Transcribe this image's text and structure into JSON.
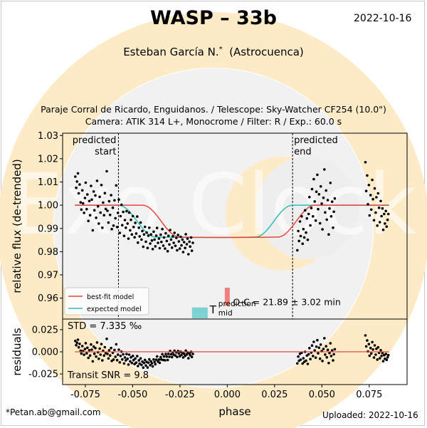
{
  "header": {
    "title": "WASP – 33b",
    "date": "2022-10-16",
    "author": "Esteban García N.",
    "author_mark": "*",
    "affiliation": "(Astrocuenca)",
    "info_line1": "Paraje Corral de Ricardo, Enguidanos. / Telescope: Sky-Watcher CF254 (10.0\")",
    "info_line2": "Camera: ATIK 314 L+, Monocrome / Filter: R / Exp.: 60.0 s"
  },
  "footer": {
    "email": "*Petan.ab@gmail.com",
    "uploaded": "Uploaded: 2022-10-16"
  },
  "watermark": {
    "text": "Exo Clock",
    "colors": [
      "#fdebc7",
      "#eeeeee"
    ]
  },
  "chart_data": {
    "type": "scatter",
    "xlabel": "phase",
    "ylabel_top": "relative flux (de-trended)",
    "ylabel_bottom": "residuals",
    "xlim": [
      -0.087,
      0.095
    ],
    "xticks": [
      "-0.075",
      "-0.050",
      "-0.025",
      "0.000",
      "0.025",
      "0.050",
      "0.075"
    ],
    "xtick_values": [
      -0.075,
      -0.05,
      -0.025,
      0.0,
      0.025,
      0.05,
      0.075
    ],
    "top": {
      "ylim": [
        0.951,
        1.031
      ],
      "yticks": [
        "0.96",
        "0.97",
        "0.98",
        "0.99",
        "1.00",
        "1.01",
        "1.02",
        "1.03"
      ],
      "ytick_values": [
        0.96,
        0.97,
        0.98,
        0.99,
        1.0,
        1.01,
        1.02,
        1.03
      ],
      "predicted_start": {
        "x": -0.0575,
        "label_line1": "predicted",
        "label_line2": "start"
      },
      "predicted_end": {
        "x": 0.0345,
        "label_line1": "predicted",
        "label_line2": "end"
      },
      "models": {
        "best_fit": {
          "label": "best-fit model",
          "color": "#e8453c",
          "x_start": -0.0448,
          "x_end": 0.0463,
          "ingress": 0.0195,
          "depth": 0.0133
        },
        "expected": {
          "label": "expected model",
          "color": "#2bbfb6",
          "x_start": -0.0575,
          "x_end": 0.0345,
          "ingress": 0.0195,
          "depth": 0.0133
        }
      },
      "oc_text": "O-C = 21.89 ± 3.02 min",
      "oc_color": "#f08080",
      "oc_bar": {
        "x": 0.0,
        "y_range": [
          0.9568,
          0.9645
        ]
      },
      "tmid_bar": {
        "x": -0.0145,
        "y_range": [
          0.9513,
          0.956
        ]
      },
      "tmid_color": "#7fd2d2",
      "tmid_label": "T",
      "tmid_sup": "prediction",
      "tmid_sub": "mid"
    },
    "bottom": {
      "ylim": [
        -0.037,
        0.037
      ],
      "yticks": [
        "-0.025",
        "0.000",
        "0.025"
      ],
      "ytick_values": [
        -0.025,
        0.0,
        0.025
      ],
      "std_text": "STD = 7.335 ‰",
      "snr_text": "Transit SNR = 9.8"
    },
    "points": [
      [
        -0.0803,
        1.0123
      ],
      [
        -0.0798,
        1.0075
      ],
      [
        -0.0794,
        1.0102
      ],
      [
        -0.0789,
        1.0137
      ],
      [
        -0.0785,
        1.0051
      ],
      [
        -0.078,
        1.0089
      ],
      [
        -0.0775,
        1.0012
      ],
      [
        -0.0771,
        0.9981
      ],
      [
        -0.0766,
        1.0064
      ],
      [
        -0.0762,
        1.0008
      ],
      [
        -0.0757,
        0.9967
      ],
      [
        -0.0752,
        1.0031
      ],
      [
        -0.0748,
        1.0097
      ],
      [
        -0.0743,
        0.9983
      ],
      [
        -0.0739,
        1.0046
      ],
      [
        -0.0734,
        0.9932
      ],
      [
        -0.0729,
        1.0018
      ],
      [
        -0.0725,
        0.9957
      ],
      [
        -0.072,
        1.0083
      ],
      [
        -0.0716,
        1.0024
      ],
      [
        -0.0711,
        0.9892
      ],
      [
        -0.0706,
        1.0059
      ],
      [
        -0.0702,
        0.9978
      ],
      [
        -0.0697,
        1.0042
      ],
      [
        -0.0693,
        0.9946
      ],
      [
        -0.0688,
        1.0105
      ],
      [
        -0.0683,
        0.9995
      ],
      [
        -0.0679,
        0.9921
      ],
      [
        -0.0674,
        1.0036
      ],
      [
        -0.067,
        0.9968
      ],
      [
        -0.0665,
        1.0087
      ],
      [
        -0.066,
        0.9903
      ],
      [
        -0.0656,
        1.0011
      ],
      [
        -0.0651,
        0.9957
      ],
      [
        -0.0647,
        1.0052
      ],
      [
        -0.0642,
        0.9984
      ],
      [
        -0.0637,
        1.0146
      ],
      [
        -0.0633,
        0.9976
      ],
      [
        -0.0628,
        0.9925
      ],
      [
        -0.0624,
        1.0017
      ],
      [
        -0.0619,
        0.9958
      ],
      [
        -0.0614,
        1.0043
      ],
      [
        -0.061,
        0.9897
      ],
      [
        -0.0605,
        0.9989
      ],
      [
        -0.0601,
        0.9912
      ],
      [
        -0.0596,
        1.0021
      ],
      [
        -0.0591,
        0.9944
      ],
      [
        -0.0587,
        1.0085
      ],
      [
        -0.0582,
        0.9906
      ],
      [
        -0.0578,
        0.9967
      ],
      [
        -0.0573,
        1.0024
      ],
      [
        -0.0568,
        0.9881
      ],
      [
        -0.0564,
        0.9953
      ],
      [
        -0.0559,
        1.0002
      ],
      [
        -0.0555,
        0.9914
      ],
      [
        -0.055,
        0.9971
      ],
      [
        -0.0545,
        0.9868
      ],
      [
        -0.0541,
        0.9936
      ],
      [
        -0.0536,
        0.9903
      ],
      [
        -0.0532,
        0.9974
      ],
      [
        -0.0527,
        0.9921
      ],
      [
        -0.0522,
        0.9856
      ],
      [
        -0.0518,
        0.9968
      ],
      [
        -0.0513,
        0.9892
      ],
      [
        -0.0509,
        0.9937
      ],
      [
        -0.0504,
        0.9874
      ],
      [
        -0.0499,
        0.9953
      ],
      [
        -0.0495,
        0.9906
      ],
      [
        -0.049,
        0.9862
      ],
      [
        -0.0486,
        0.9924
      ],
      [
        -0.0481,
        0.9878
      ],
      [
        -0.0476,
        0.9951
      ],
      [
        -0.0472,
        0.9839
      ],
      [
        -0.0467,
        0.9903
      ],
      [
        -0.0463,
        0.9866
      ],
      [
        -0.0458,
        0.9925
      ],
      [
        -0.0453,
        0.9852
      ],
      [
        -0.0449,
        0.9889
      ],
      [
        -0.0444,
        0.9821
      ],
      [
        -0.044,
        0.9874
      ],
      [
        -0.0435,
        0.9907
      ],
      [
        -0.043,
        0.9843
      ],
      [
        -0.0426,
        0.9882
      ],
      [
        -0.0421,
        0.9816
      ],
      [
        -0.0417,
        0.9869
      ],
      [
        -0.0412,
        0.9903
      ],
      [
        -0.0407,
        0.9835
      ],
      [
        -0.0403,
        0.9874
      ],
      [
        -0.0398,
        0.9848
      ],
      [
        -0.0394,
        0.9811
      ],
      [
        -0.0389,
        0.9886
      ],
      [
        -0.0384,
        0.9852
      ],
      [
        -0.038,
        0.9823
      ],
      [
        -0.0375,
        0.9869
      ],
      [
        -0.0371,
        0.9902
      ],
      [
        -0.0366,
        0.9838
      ],
      [
        -0.0361,
        0.9856
      ],
      [
        -0.0357,
        0.9815
      ],
      [
        -0.0352,
        0.9873
      ],
      [
        -0.0348,
        0.9842
      ],
      [
        -0.0343,
        0.9897
      ],
      [
        -0.0338,
        0.9826
      ],
      [
        -0.0334,
        0.9861
      ],
      [
        -0.0329,
        0.9813
      ],
      [
        -0.0325,
        0.9879
      ],
      [
        -0.032,
        0.9846
      ],
      [
        -0.0315,
        0.9802
      ],
      [
        -0.0311,
        0.9868
      ],
      [
        -0.0306,
        0.9831
      ],
      [
        -0.0302,
        0.9893
      ],
      [
        -0.0297,
        0.9852
      ],
      [
        -0.0292,
        0.9817
      ],
      [
        -0.0288,
        0.9866
      ],
      [
        -0.0283,
        0.9838
      ],
      [
        -0.0279,
        0.9881
      ],
      [
        -0.0274,
        0.9825
      ],
      [
        -0.0269,
        0.9859
      ],
      [
        -0.0265,
        0.9806
      ],
      [
        -0.026,
        0.9872
      ],
      [
        -0.0256,
        0.9844
      ],
      [
        -0.0251,
        0.9813
      ],
      [
        -0.0246,
        0.9864
      ],
      [
        -0.0242,
        0.9827
      ],
      [
        -0.0237,
        0.9852
      ],
      [
        -0.0233,
        0.9798
      ],
      [
        -0.0228,
        0.9841
      ],
      [
        -0.0223,
        0.9816
      ],
      [
        -0.0219,
        0.9875
      ],
      [
        -0.0214,
        0.9832
      ],
      [
        -0.021,
        0.9856
      ],
      [
        -0.0205,
        0.9789
      ],
      [
        -0.02,
        0.9843
      ],
      [
        -0.0196,
        0.9822
      ],
      [
        -0.0191,
        0.9861
      ],
      [
        -0.0187,
        0.9804
      ],
      [
        -0.0182,
        0.9838
      ],
      [
        0.037,
        0.9806
      ],
      [
        0.0375,
        0.9889
      ],
      [
        0.0379,
        0.9846
      ],
      [
        0.0384,
        0.993
      ],
      [
        0.0388,
        0.9867
      ],
      [
        0.0393,
        0.9952
      ],
      [
        0.0398,
        0.9834
      ],
      [
        0.0402,
        0.9897
      ],
      [
        0.0407,
        0.9861
      ],
      [
        0.0411,
        0.9978
      ],
      [
        0.0416,
        0.9882
      ],
      [
        0.0421,
        0.9943
      ],
      [
        0.0425,
        0.9851
      ],
      [
        0.043,
        0.9962
      ],
      [
        0.0434,
        1.0035
      ],
      [
        0.0439,
        0.9913
      ],
      [
        0.0444,
        0.9988
      ],
      [
        0.0448,
        1.0069
      ],
      [
        0.0453,
        0.9952
      ],
      [
        0.0457,
        1.0112
      ],
      [
        0.0462,
        1.0016
      ],
      [
        0.0467,
        0.9934
      ],
      [
        0.0471,
        1.0058
      ],
      [
        0.0476,
        1.0131
      ],
      [
        0.048,
        0.9983
      ],
      [
        0.0485,
        1.0047
      ],
      [
        0.049,
        0.9922
      ],
      [
        0.0494,
        1.0081
      ],
      [
        0.0499,
        1.0007
      ],
      [
        0.0503,
        0.9896
      ],
      [
        0.0508,
        1.0032
      ],
      [
        0.0513,
        1.0154
      ],
      [
        0.0517,
        0.9969
      ],
      [
        0.0522,
        1.0063
      ],
      [
        0.0526,
        0.9938
      ],
      [
        0.0531,
        1.0022
      ],
      [
        0.0536,
        0.9874
      ],
      [
        0.054,
        0.9986
      ],
      [
        0.0545,
        1.0096
      ],
      [
        0.0549,
        0.9952
      ],
      [
        0.0554,
        1.0015
      ],
      [
        0.0559,
        0.9903
      ],
      [
        0.0563,
        0.9972
      ],
      [
        0.0568,
        1.0029
      ],
      [
        0.073,
        1.0185
      ],
      [
        0.0734,
        1.0061
      ],
      [
        0.0739,
        1.0128
      ],
      [
        0.0743,
        1.0004
      ],
      [
        0.0748,
        1.0087
      ],
      [
        0.0752,
        0.9956
      ],
      [
        0.0757,
        1.0043
      ],
      [
        0.0761,
        0.9981
      ],
      [
        0.0766,
        1.0109
      ],
      [
        0.077,
        1.0026
      ],
      [
        0.0775,
        0.9935
      ],
      [
        0.0779,
        1.0072
      ],
      [
        0.0784,
        0.9968
      ],
      [
        0.0788,
        1.0034
      ],
      [
        0.0793,
        0.9912
      ],
      [
        0.0797,
        1.0051
      ],
      [
        0.0802,
        0.9989
      ],
      [
        0.0806,
        0.9927
      ],
      [
        0.0811,
        1.0018
      ],
      [
        0.0815,
        0.9953
      ],
      [
        0.082,
        0.9986
      ],
      [
        0.0824,
        0.9894
      ],
      [
        0.0829,
        0.9962
      ],
      [
        0.0833,
        0.9921
      ],
      [
        0.0838,
        0.9975
      ],
      [
        0.0842,
        0.9908
      ],
      [
        0.0847,
        0.9937
      ],
      [
        0.0851,
        0.9962
      ]
    ]
  }
}
